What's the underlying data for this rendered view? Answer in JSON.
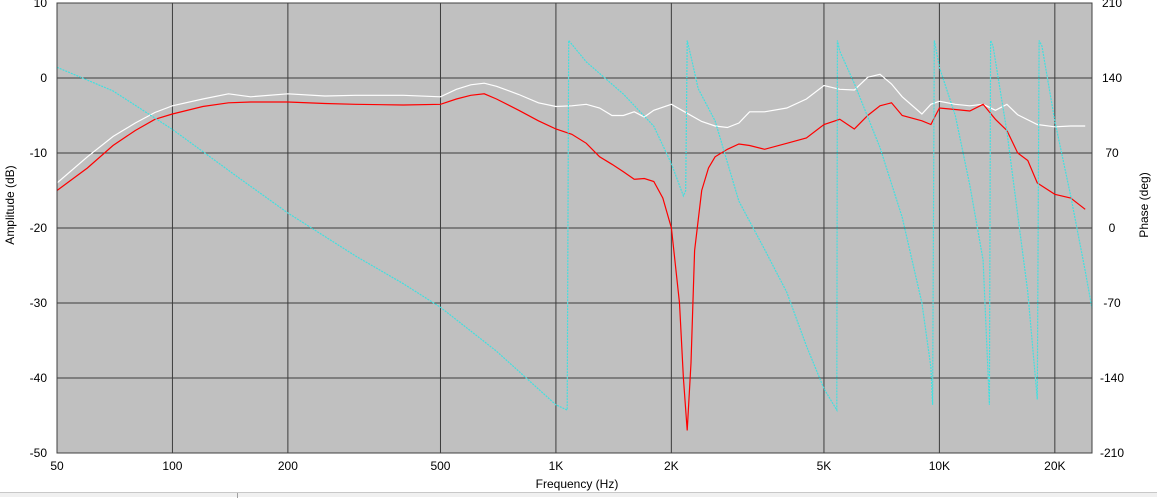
{
  "chart_data": {
    "type": "line",
    "xlabel": "Frequency (Hz)",
    "ylabel": "Amplitude (dB)",
    "y2label": "Phase (deg)",
    "x_scale": "log",
    "xlim": [
      50,
      25000
    ],
    "ylim": [
      -50,
      10
    ],
    "y2lim": [
      -210,
      210
    ],
    "grid": true,
    "background": "#c0c0c0",
    "x_ticks": [
      {
        "value": 50,
        "label": "50"
      },
      {
        "value": 100,
        "label": "100"
      },
      {
        "value": 200,
        "label": "200"
      },
      {
        "value": 500,
        "label": "500"
      },
      {
        "value": 1000,
        "label": "1K"
      },
      {
        "value": 2000,
        "label": "2K"
      },
      {
        "value": 5000,
        "label": "5K"
      },
      {
        "value": 10000,
        "label": "10K"
      },
      {
        "value": 20000,
        "label": "20K"
      }
    ],
    "y_ticks": [
      10,
      0,
      -10,
      -20,
      -30,
      -40,
      -50
    ],
    "y2_ticks": [
      210,
      140,
      70,
      0,
      -70,
      -140,
      -210
    ],
    "series": [
      {
        "color": "#ffffff",
        "axis": "left",
        "x": [
          50,
          60,
          70,
          80,
          90,
          100,
          120,
          140,
          160,
          200,
          250,
          300,
          400,
          500,
          550,
          600,
          650,
          700,
          800,
          900,
          1000,
          1100,
          1200,
          1300,
          1400,
          1500,
          1600,
          1700,
          1800,
          2000,
          2200,
          2400,
          2600,
          2800,
          3000,
          3200,
          3500,
          4000,
          4500,
          5000,
          5500,
          6000,
          6500,
          7000,
          7500,
          8000,
          9000,
          9500,
          10000,
          11000,
          12000,
          13000,
          14000,
          15000,
          16000,
          18000,
          20000,
          22000,
          24000
        ],
        "y": [
          -14,
          -10.5,
          -7.8,
          -6,
          -4.6,
          -3.7,
          -2.8,
          -2.1,
          -2.5,
          -2.1,
          -2.4,
          -2.3,
          -2.3,
          -2.5,
          -1.5,
          -0.9,
          -0.7,
          -1.1,
          -2.2,
          -3.3,
          -3.8,
          -3.7,
          -3.5,
          -4,
          -5,
          -5,
          -4.5,
          -5.2,
          -4.3,
          -3.5,
          -4.7,
          -5.8,
          -6.4,
          -6.6,
          -6,
          -4.5,
          -4.5,
          -4,
          -2.8,
          -1,
          -1.5,
          -1.6,
          0.1,
          0.5,
          -0.8,
          -2.5,
          -4.8,
          -3.5,
          -3.1,
          -3.5,
          -3.7,
          -3.5,
          -4.3,
          -3.5,
          -4.9,
          -6.2,
          -6.5,
          -6.4,
          -6.4
        ]
      },
      {
        "color": "#ff0000",
        "axis": "left",
        "x": [
          50,
          60,
          70,
          80,
          90,
          100,
          120,
          140,
          160,
          200,
          250,
          300,
          400,
          500,
          550,
          600,
          650,
          700,
          800,
          900,
          1000,
          1100,
          1200,
          1300,
          1400,
          1500,
          1600,
          1700,
          1800,
          1900,
          2000,
          2100,
          2150,
          2200,
          2250,
          2300,
          2400,
          2500,
          2600,
          2800,
          3000,
          3200,
          3500,
          4000,
          4500,
          5000,
          5500,
          6000,
          6500,
          7000,
          7500,
          8000,
          9000,
          9500,
          10000,
          11000,
          12000,
          13000,
          14000,
          15000,
          16000,
          17000,
          18000,
          20000,
          22000,
          24000
        ],
        "y": [
          -15,
          -12,
          -9,
          -7,
          -5.5,
          -4.8,
          -3.8,
          -3.3,
          -3.2,
          -3.2,
          -3.4,
          -3.5,
          -3.6,
          -3.5,
          -2.8,
          -2.3,
          -2.1,
          -2.8,
          -4.3,
          -5.7,
          -6.8,
          -7.5,
          -8.7,
          -10.5,
          -11.5,
          -12.5,
          -13.5,
          -13.4,
          -13.8,
          -16,
          -20,
          -30,
          -40,
          -47,
          -38,
          -23,
          -15,
          -12,
          -10.5,
          -9.5,
          -8.8,
          -9,
          -9.5,
          -8.7,
          -8,
          -6.2,
          -5.5,
          -6.8,
          -5,
          -3.7,
          -3.3,
          -5,
          -5.7,
          -6.2,
          -4,
          -4.2,
          -4.4,
          -3.5,
          -5.5,
          -7,
          -10,
          -11,
          -14,
          -15.5,
          -16,
          -17.5
        ]
      },
      {
        "color": "#40e0e0",
        "axis": "right",
        "x": [
          50,
          70,
          100,
          150,
          200,
          300,
          400,
          500,
          700,
          1000,
          1070,
          1080,
          1200,
          1500,
          1800,
          2000,
          2150,
          2180,
          2200,
          2250,
          2350,
          2600,
          3000,
          3500,
          4000,
          4500,
          5000,
          5400,
          5420,
          5500,
          6000,
          7000,
          8000,
          9000,
          9500,
          9600,
          9700,
          10000,
          11000,
          12000,
          13000,
          13500,
          13600,
          13800,
          15000,
          17000,
          18000,
          18200,
          18500,
          20000,
          22000,
          24000,
          25000
        ],
        "y": [
          150,
          128,
          92,
          46,
          14,
          -26,
          -52,
          -74,
          -115,
          -165,
          -170,
          175,
          155,
          125,
          95,
          60,
          30,
          35,
          175,
          160,
          130,
          100,
          25,
          -20,
          -60,
          -110,
          -150,
          -170,
          175,
          165,
          135,
          75,
          10,
          -70,
          -130,
          -165,
          175,
          150,
          105,
          40,
          -30,
          -165,
          175,
          170,
          90,
          -60,
          -160,
          175,
          170,
          100,
          30,
          -40,
          -75
        ]
      }
    ]
  }
}
